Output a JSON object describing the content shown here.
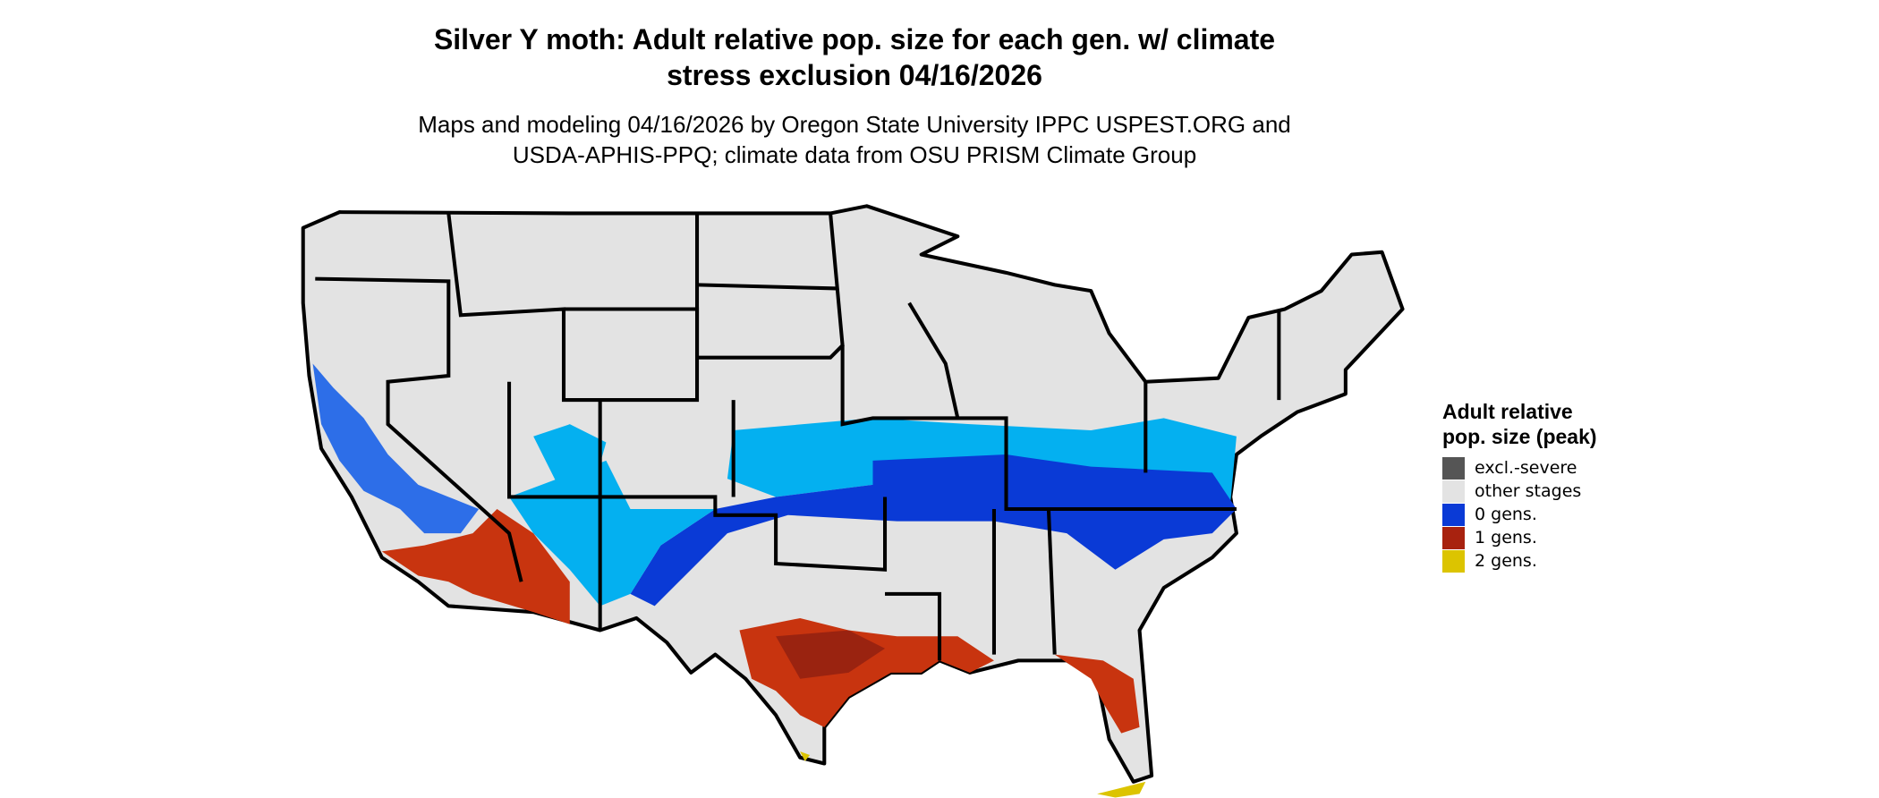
{
  "title": "Silver Y moth: Adult relative pop. size for each gen. w/ climate stress exclusion 04/16/2026",
  "subtitle": "Maps and modeling 04/16/2026 by Oregon State University IPPC USPEST.ORG and USDA-APHIS-PPQ; climate data from OSU PRISM Climate Group",
  "legend": {
    "title": "Adult relative pop. size (peak)",
    "items": [
      {
        "label": "excl.-severe",
        "color": "#555555"
      },
      {
        "label": "other stages",
        "color": "#e3e3e3"
      },
      {
        "label": "0 gens.",
        "color": "#0a3ad6"
      },
      {
        "label": "1 gens.",
        "color": "#a8220f"
      },
      {
        "label": "2 gens.",
        "color": "#dcc400"
      }
    ]
  }
}
